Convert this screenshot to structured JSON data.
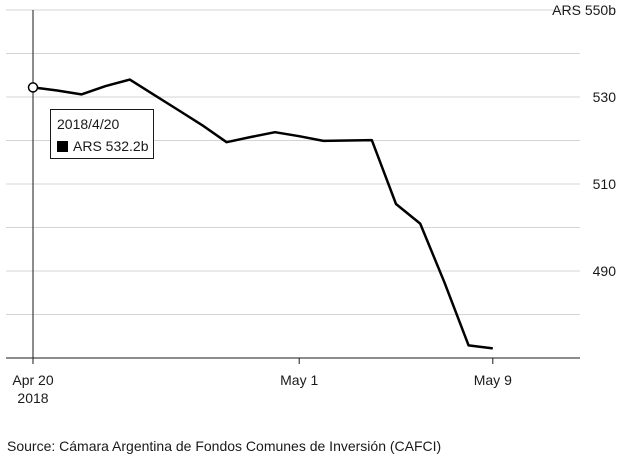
{
  "chart_data": {
    "type": "line",
    "x": [
      "2018-04-20",
      "2018-04-21",
      "2018-04-22",
      "2018-04-23",
      "2018-04-24",
      "2018-04-25",
      "2018-04-26",
      "2018-04-27",
      "2018-04-28",
      "2018-04-29",
      "2018-04-30",
      "2018-05-01",
      "2018-05-02",
      "2018-05-03",
      "2018-05-04",
      "2018-05-05",
      "2018-05-06",
      "2018-05-07",
      "2018-05-08",
      "2018-05-09"
    ],
    "series": [
      {
        "values": [
          532.2,
          531.5,
          530.6,
          532.5,
          534.0,
          530.5,
          527.0,
          523.5,
          519.6,
          520.8,
          521.9,
          521.0,
          519.9,
          520.0,
          520.1,
          505.4,
          500.9,
          487.4,
          472.9,
          472.2
        ]
      }
    ],
    "y_ticks": [
      {
        "value": 490,
        "label": "490"
      },
      {
        "value": 510,
        "label": "510"
      },
      {
        "value": 530,
        "label": "530"
      },
      {
        "value": 550,
        "label": "ARS 550b"
      }
    ],
    "x_ticks": [
      {
        "date": "2018-04-20",
        "label": "Apr 20",
        "sublabel": "2018"
      },
      {
        "date": "2018-05-01",
        "label": "May 1",
        "sublabel": ""
      },
      {
        "date": "2018-05-09",
        "label": "May 9",
        "sublabel": ""
      }
    ],
    "ylim": [
      470,
      550
    ],
    "grid": true,
    "hover": {
      "date": "2018-04-20",
      "value": 532.2
    }
  },
  "tooltip": {
    "date": "2018/4/20",
    "value": "ARS 532.2b"
  },
  "source": "Source: Cámara Argentina de Fondos Comunes de Inversión (CAFCI)"
}
